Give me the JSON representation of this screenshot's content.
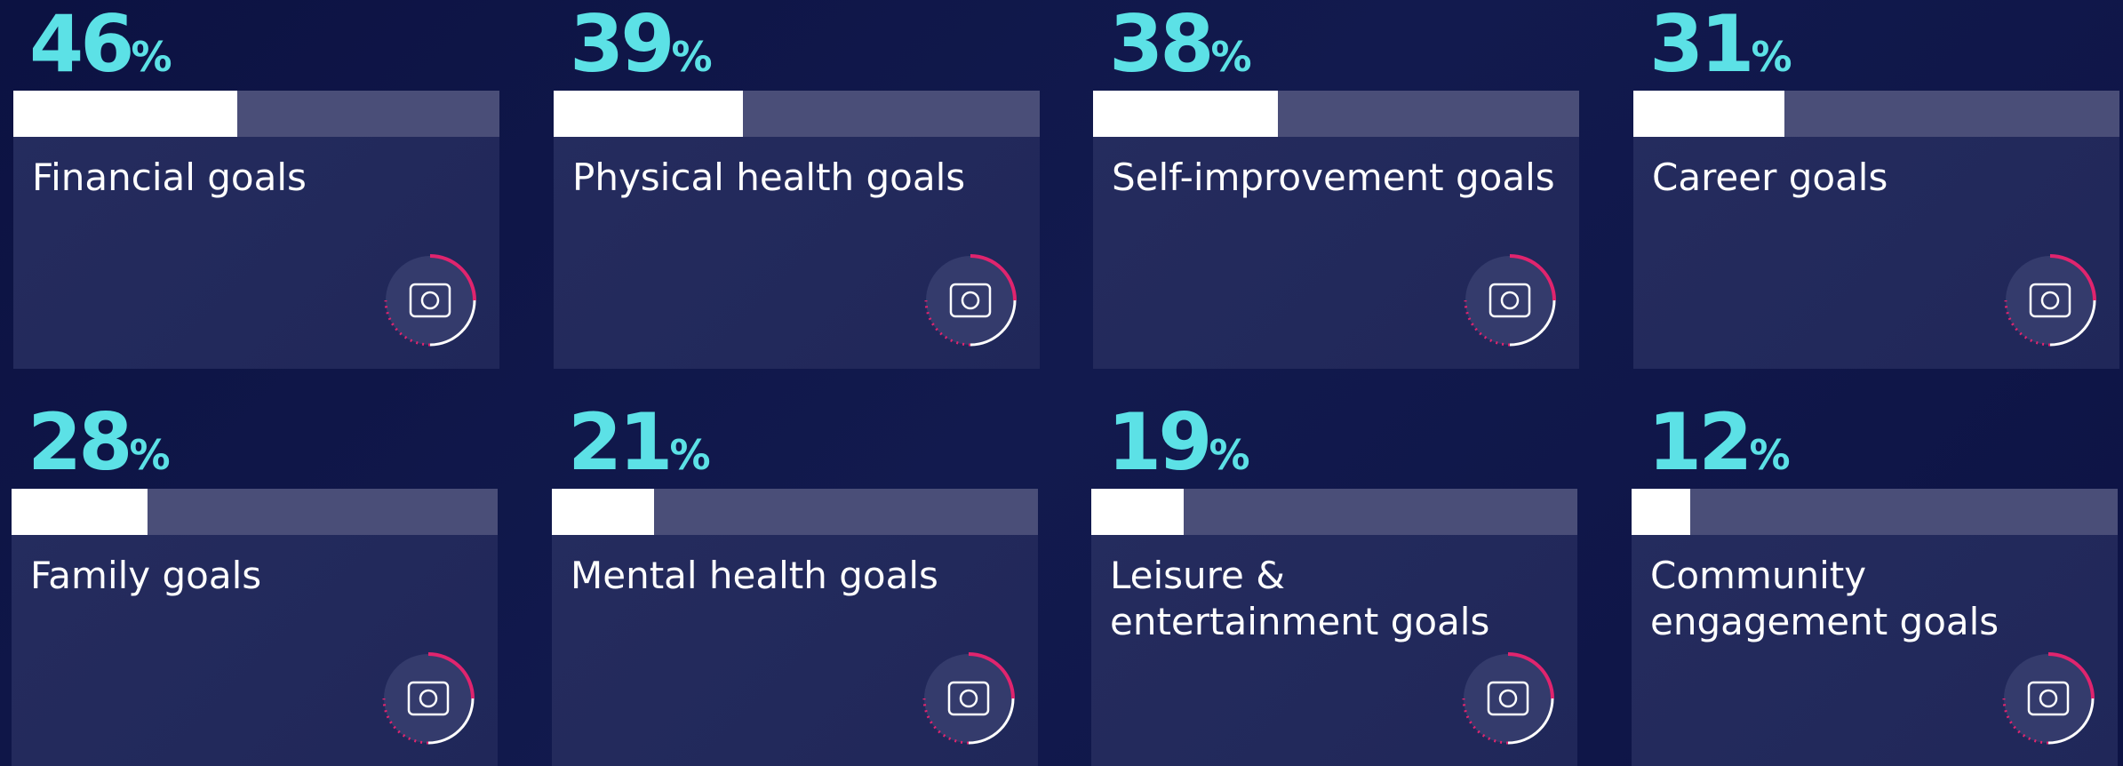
{
  "chart_data": {
    "type": "bar",
    "categories": [
      "Financial goals",
      "Physical health goals",
      "Self-improvement goals",
      "Career goals",
      "Family goals",
      "Mental health goals",
      "Leisure &\nentertainment goals",
      "Community\nengagement goals"
    ],
    "values": [
      46,
      39,
      38,
      31,
      28,
      21,
      19,
      12
    ],
    "unit": "%",
    "xlim": [
      0,
      100
    ],
    "color": "#ffffff"
  }
}
